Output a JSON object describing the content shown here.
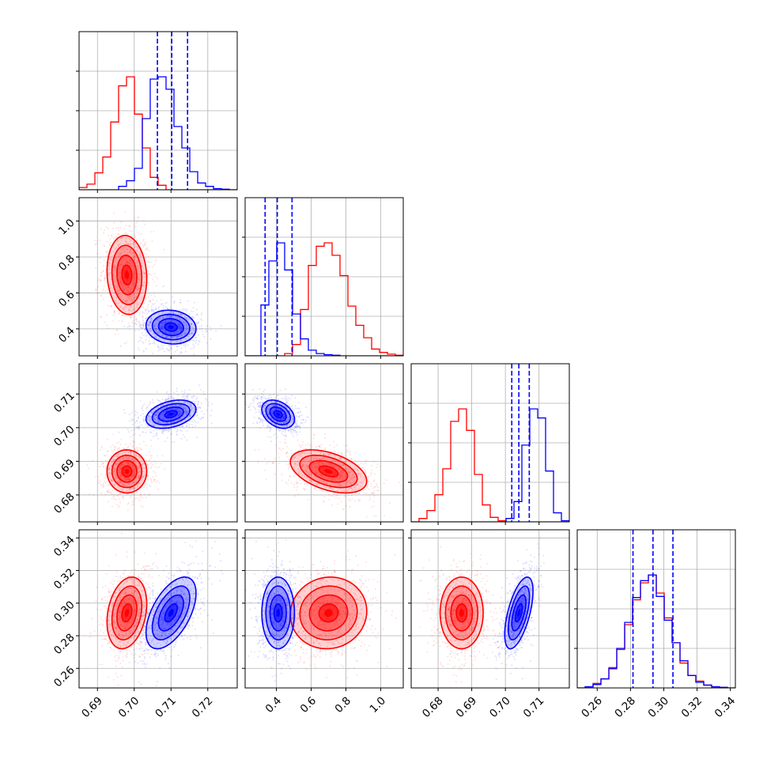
{
  "chart_data": {
    "type": "corner",
    "title": "",
    "grid": true,
    "colors": {
      "red": "#ff0000",
      "blue": "#0000ff",
      "grid": "#b0b0b0"
    },
    "parameters": [
      {
        "xlim": [
          0.685,
          0.728
        ],
        "ticks": [
          "0.69",
          "0.70",
          "0.71",
          "0.72"
        ],
        "tickvals": [
          0.69,
          0.7,
          0.71,
          0.72
        ]
      },
      {
        "xlim": [
          0.22,
          1.13
        ],
        "ticks": [
          "0.4",
          "0.6",
          "0.8",
          "1.0"
        ],
        "tickvals": [
          0.4,
          0.6,
          0.8,
          1.0
        ]
      },
      {
        "xlim": [
          0.672,
          0.719
        ],
        "ticks": [
          "0.68",
          "0.69",
          "0.70",
          "0.71"
        ],
        "tickvals": [
          0.68,
          0.69,
          0.7,
          0.71
        ]
      },
      {
        "xlim": [
          0.248,
          0.343
        ],
        "ticks": [
          "0.26",
          "0.28",
          "0.30",
          "0.32",
          "0.34"
        ],
        "tickvals": [
          0.26,
          0.28,
          0.3,
          0.32,
          0.34
        ]
      }
    ],
    "series": [
      {
        "name": "red",
        "mean": [
          0.698,
          0.7,
          0.687,
          0.294
        ],
        "sd": [
          0.0027,
          0.11,
          0.0032,
          0.011
        ],
        "corr": [
          [
            0,
            1,
            -0.1
          ],
          [
            0,
            3,
            0.25
          ],
          [
            1,
            2,
            -0.45
          ],
          [
            2,
            3,
            0.0
          ],
          [
            1,
            3,
            0.05
          ],
          [
            0,
            2,
            0.0
          ]
        ],
        "hist_heights": [
          [
            0.02,
            0.05,
            0.15,
            0.29,
            0.6,
            0.92,
            1.0,
            0.67,
            0.37,
            0.11,
            0.04,
            0.0,
            0.0,
            0.0,
            0.0,
            0.0,
            0.0,
            0.0,
            0.0,
            0.0
          ],
          [
            0.0,
            0.0,
            0.0,
            0.0,
            0.0,
            0.02,
            0.1,
            0.41,
            0.8,
            0.97,
            1.0,
            0.89,
            0.71,
            0.44,
            0.27,
            0.16,
            0.06,
            0.03,
            0.015,
            0.005
          ],
          [
            0.0,
            0.03,
            0.1,
            0.24,
            0.47,
            0.89,
            1.0,
            0.81,
            0.42,
            0.15,
            0.04,
            0.01,
            0.0,
            0.0,
            0.0,
            0.0,
            0.0,
            0.0,
            0.0,
            0.0
          ],
          [
            0.0,
            0.01,
            0.04,
            0.08,
            0.18,
            0.34,
            0.56,
            0.78,
            0.93,
            1.0,
            0.84,
            0.62,
            0.4,
            0.22,
            0.11,
            0.06,
            0.025,
            0.01,
            0.005,
            0.0
          ]
        ]
      },
      {
        "name": "blue",
        "mean": [
          0.71,
          0.41,
          0.704,
          0.294
        ],
        "sd": [
          0.0034,
          0.047,
          0.0021,
          0.011
        ],
        "corr": [
          [
            0,
            1,
            -0.1
          ],
          [
            0,
            2,
            0.35
          ],
          [
            0,
            3,
            0.55
          ],
          [
            1,
            2,
            -0.35
          ],
          [
            1,
            3,
            0.0
          ],
          [
            2,
            3,
            0.6
          ]
        ],
        "hist_heights": [
          [
            0.0,
            0.0,
            0.0,
            0.0,
            0.0,
            0.03,
            0.08,
            0.19,
            0.63,
            0.98,
            1.0,
            0.89,
            0.56,
            0.37,
            0.16,
            0.06,
            0.03,
            0.01,
            0.005,
            0.0
          ],
          [
            0.0,
            0.0,
            0.45,
            0.84,
            1.0,
            0.76,
            0.37,
            0.15,
            0.05,
            0.02,
            0.01,
            0.005,
            0.0,
            0.0,
            0.0,
            0.0,
            0.0,
            0.0,
            0.0,
            0.0
          ],
          [
            0.0,
            0.0,
            0.0,
            0.0,
            0.0,
            0.0,
            0.0,
            0.0,
            0.0,
            0.0,
            0.0,
            0.0,
            0.03,
            0.18,
            0.68,
            1.0,
            0.92,
            0.45,
            0.08,
            0.01
          ],
          [
            0.0,
            0.01,
            0.03,
            0.08,
            0.17,
            0.35,
            0.58,
            0.8,
            0.95,
            1.0,
            0.81,
            0.6,
            0.4,
            0.24,
            0.11,
            0.05,
            0.025,
            0.01,
            0.005,
            0.0
          ]
        ],
        "quantiles": [
          [
            0.7063,
            0.7102,
            0.7145
          ],
          [
            0.335,
            0.405,
            0.49
          ],
          [
            0.7019,
            0.704,
            0.7071
          ],
          [
            0.2815,
            0.2935,
            0.3055
          ]
        ]
      }
    ]
  }
}
